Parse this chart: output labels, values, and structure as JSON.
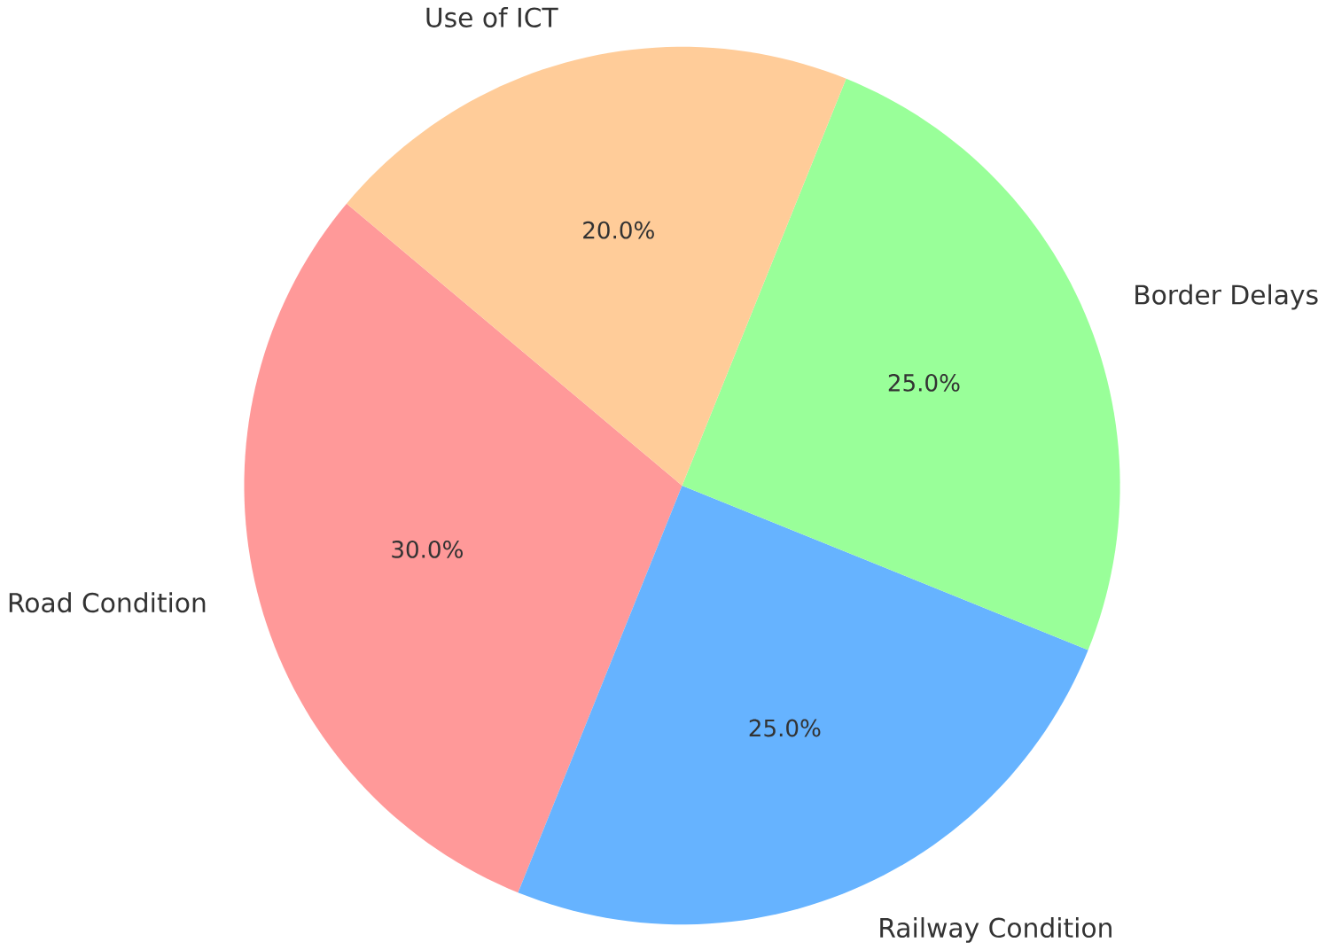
{
  "chart_data": {
    "type": "pie",
    "categories": [
      "Road Condition",
      "Railway Condition",
      "Border Delays",
      "Use of ICT"
    ],
    "values": [
      30,
      25,
      25,
      20
    ],
    "colors": [
      "#ff9999",
      "#66b3ff",
      "#99ff99",
      "#ffcc99"
    ],
    "value_labels": [
      "30.0%",
      "25.0%",
      "25.0%",
      "20.0%"
    ]
  }
}
